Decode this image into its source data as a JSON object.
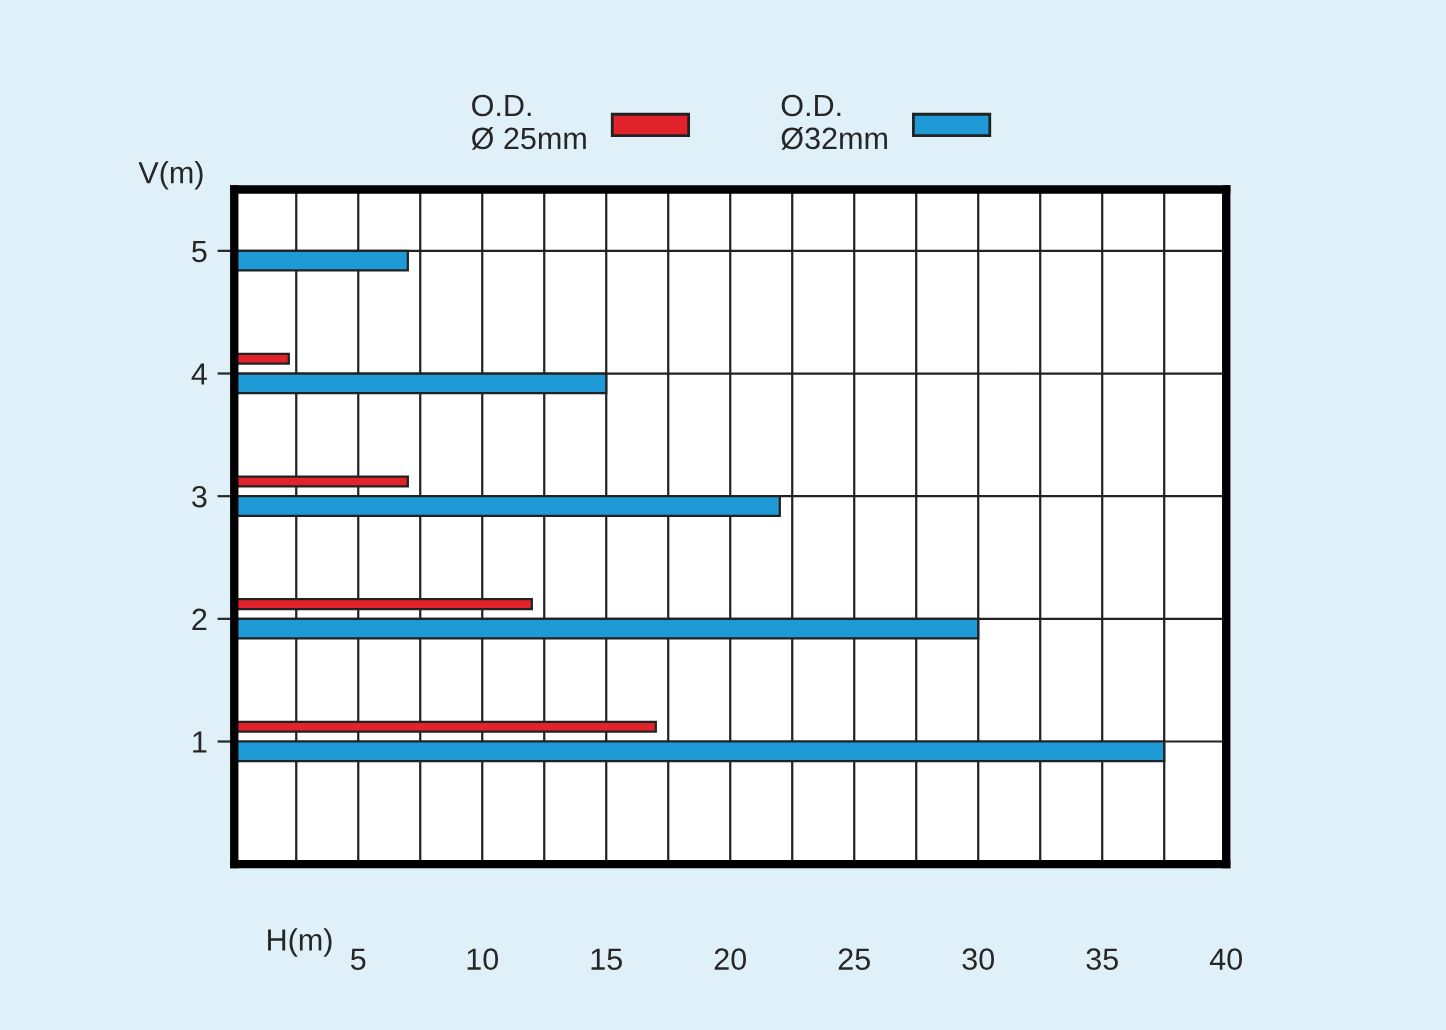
{
  "chart_data": {
    "type": "bar",
    "orientation": "horizontal",
    "xlabel": "H(m)",
    "ylabel": "V(m)",
    "categories": [
      "5",
      "4",
      "3",
      "2",
      "1"
    ],
    "series": [
      {
        "name": "O.D.\nØ 25mm",
        "color": "#e3232b",
        "values": [
          null,
          2.2,
          7,
          12,
          17
        ]
      },
      {
        "name": "O.D.\nØ32mm",
        "color": "#1e9ad6",
        "values": [
          7,
          15,
          22,
          30,
          37.5
        ]
      }
    ],
    "xlim": [
      0,
      40
    ],
    "xticks": [
      {
        "value": 2.5,
        "label": null
      },
      5,
      {
        "value": 7.5,
        "label": null
      },
      10,
      {
        "value": 12.5,
        "label": null
      },
      15,
      {
        "value": 17.5,
        "label": null
      },
      20,
      {
        "value": 22.5,
        "label": null
      },
      25,
      {
        "value": 27.5,
        "label": null
      },
      30,
      {
        "value": 32.5,
        "label": null
      },
      35,
      {
        "value": 37.5,
        "label": null
      },
      40
    ],
    "grid": true,
    "legend": "top"
  }
}
